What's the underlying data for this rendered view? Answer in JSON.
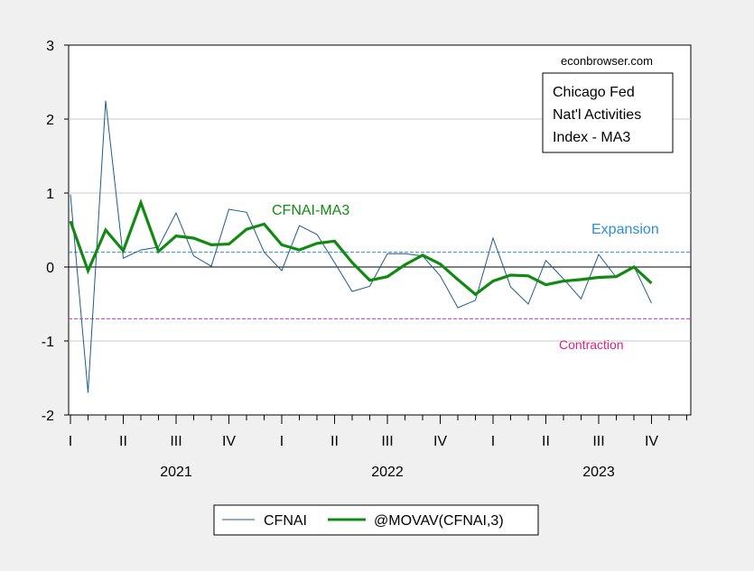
{
  "chart_data": {
    "type": "line",
    "source_label": "econbrowser.com",
    "title_box_lines": [
      "Chicago Fed",
      "Nat'l Activities",
      "Index - MA3"
    ],
    "series_annotation": "CFNAI-MA3",
    "reference_lines": [
      {
        "label": "Expansion",
        "value": 0.2,
        "color": "#2a8fd6",
        "label_color": "#2a8fd6"
      },
      {
        "label": "Contraction",
        "value": -0.7,
        "color": "#c03cc0",
        "label_color": "#e0207a"
      }
    ],
    "ylim": [
      -2,
      3
    ],
    "yticks": [
      3,
      2,
      1,
      0,
      -1,
      -2
    ],
    "grid": true,
    "x_quarter_labels": [
      "I",
      "II",
      "III",
      "IV",
      "I",
      "II",
      "III",
      "IV",
      "I",
      "II",
      "III",
      "IV"
    ],
    "x_year_labels": [
      "2021",
      "2022",
      "2023"
    ],
    "x_months": [
      "2021-01",
      "2021-02",
      "2021-03",
      "2021-04",
      "2021-05",
      "2021-06",
      "2021-07",
      "2021-08",
      "2021-09",
      "2021-10",
      "2021-11",
      "2021-12",
      "2022-01",
      "2022-02",
      "2022-03",
      "2022-04",
      "2022-05",
      "2022-06",
      "2022-07",
      "2022-08",
      "2022-09",
      "2022-10",
      "2022-11",
      "2022-12",
      "2023-01",
      "2023-02",
      "2023-03",
      "2023-04",
      "2023-05",
      "2023-06",
      "2023-07",
      "2023-08",
      "2023-09",
      "2023-10",
      "2023-11",
      "2023-12"
    ],
    "series": [
      {
        "name": "CFNAI",
        "color": "#1f5c8a",
        "values": [
          0.98,
          -1.7,
          2.25,
          0.12,
          0.23,
          0.27,
          0.73,
          0.15,
          0.01,
          0.78,
          0.74,
          0.2,
          -0.05,
          0.56,
          0.44,
          0.06,
          -0.33,
          -0.26,
          0.18,
          0.18,
          0.15,
          -0.12,
          -0.55,
          -0.45,
          0.39,
          -0.27,
          -0.5,
          0.09,
          -0.16,
          -0.43,
          0.17,
          -0.14,
          0.01,
          -0.49
        ]
      },
      {
        "name": "@MOVAV(CFNAI,3)",
        "color": "#118a11",
        "values": [
          0.62,
          -0.05,
          0.5,
          0.22,
          0.87,
          0.21,
          0.42,
          0.39,
          0.3,
          0.31,
          0.51,
          0.58,
          0.3,
          0.23,
          0.32,
          0.35,
          0.06,
          -0.18,
          -0.13,
          0.03,
          0.16,
          0.04,
          -0.17,
          -0.37,
          -0.19,
          -0.11,
          -0.12,
          -0.24,
          -0.19,
          -0.17,
          -0.14,
          -0.13,
          0.0,
          -0.22
        ]
      }
    ]
  }
}
